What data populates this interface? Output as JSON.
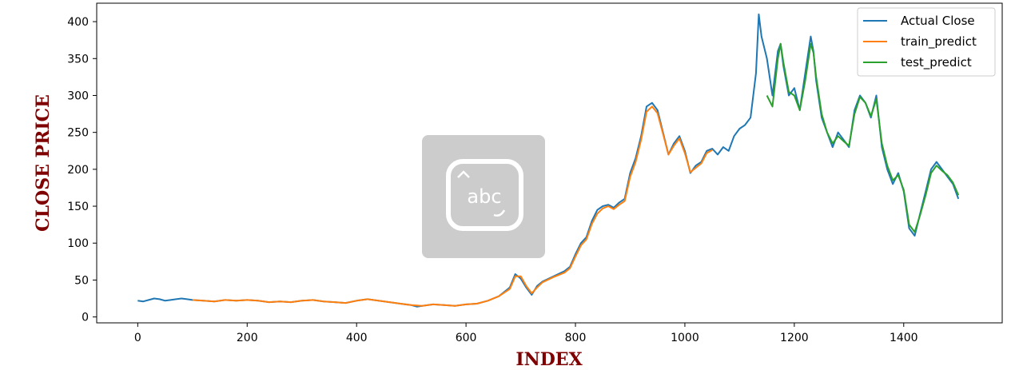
{
  "chart_data": {
    "type": "line",
    "title": "",
    "xlabel": "INDEX",
    "ylabel": "CLOSE PRICE",
    "xlim": [
      -75,
      1580
    ],
    "ylim": [
      -8,
      425
    ],
    "xticks": [
      0,
      200,
      400,
      600,
      800,
      1000,
      1200,
      1400
    ],
    "yticks": [
      0,
      50,
      100,
      150,
      200,
      250,
      300,
      350,
      400
    ],
    "grid": false,
    "legend_position": "top-right",
    "axis_title_color": "#7f0000",
    "series": [
      {
        "name": "Actual Close",
        "color": "#1f77b4",
        "x": [
          0,
          10,
          20,
          30,
          40,
          50,
          60,
          70,
          80,
          90,
          100,
          120,
          140,
          160,
          180,
          200,
          220,
          240,
          260,
          280,
          300,
          320,
          340,
          360,
          380,
          400,
          420,
          440,
          460,
          480,
          500,
          510,
          520,
          540,
          560,
          580,
          600,
          620,
          640,
          660,
          680,
          690,
          700,
          710,
          720,
          730,
          740,
          760,
          780,
          790,
          800,
          810,
          820,
          830,
          840,
          850,
          860,
          870,
          880,
          890,
          900,
          910,
          920,
          930,
          940,
          950,
          960,
          970,
          980,
          990,
          1000,
          1010,
          1020,
          1030,
          1040,
          1050,
          1060,
          1070,
          1080,
          1090,
          1100,
          1110,
          1120,
          1130,
          1135,
          1140,
          1150,
          1160,
          1170,
          1175,
          1180,
          1190,
          1200,
          1210,
          1220,
          1230,
          1235,
          1240,
          1250,
          1260,
          1270,
          1280,
          1290,
          1300,
          1310,
          1320,
          1330,
          1340,
          1350,
          1360,
          1370,
          1380,
          1390,
          1400,
          1410,
          1420,
          1430,
          1440,
          1450,
          1460,
          1470,
          1480,
          1490,
          1500
        ],
        "values": [
          22,
          21,
          23,
          25,
          24,
          22,
          23,
          24,
          25,
          24,
          23,
          22,
          21,
          23,
          22,
          23,
          22,
          20,
          21,
          20,
          22,
          23,
          21,
          20,
          19,
          22,
          24,
          22,
          20,
          18,
          16,
          14,
          15,
          17,
          16,
          15,
          17,
          18,
          22,
          28,
          40,
          58,
          52,
          40,
          30,
          42,
          48,
          55,
          62,
          68,
          85,
          100,
          108,
          130,
          145,
          150,
          152,
          148,
          155,
          160,
          195,
          215,
          245,
          285,
          290,
          280,
          250,
          220,
          235,
          245,
          225,
          195,
          205,
          210,
          225,
          228,
          220,
          230,
          225,
          245,
          255,
          260,
          270,
          330,
          410,
          380,
          350,
          300,
          360,
          370,
          340,
          300,
          310,
          280,
          330,
          380,
          360,
          320,
          270,
          250,
          230,
          250,
          240,
          230,
          280,
          300,
          290,
          270,
          300,
          230,
          200,
          180,
          195,
          170,
          120,
          110,
          140,
          170,
          200,
          210,
          200,
          190,
          180,
          160
        ],
        "data_name": "actual-close-line"
      },
      {
        "name": "train_predict",
        "color": "#ff7f0e",
        "x": [
          100,
          120,
          140,
          160,
          180,
          200,
          220,
          240,
          260,
          280,
          300,
          320,
          340,
          360,
          380,
          400,
          420,
          440,
          460,
          480,
          500,
          520,
          540,
          560,
          580,
          600,
          620,
          640,
          660,
          680,
          690,
          700,
          710,
          720,
          730,
          740,
          760,
          780,
          790,
          800,
          810,
          820,
          830,
          840,
          850,
          860,
          870,
          880,
          890,
          900,
          910,
          920,
          930,
          940,
          950,
          960,
          970,
          980,
          990,
          1000,
          1010,
          1020,
          1030,
          1040,
          1050
        ],
        "values": [
          23,
          22,
          21,
          23,
          22,
          23,
          22,
          20,
          21,
          20,
          22,
          23,
          21,
          20,
          19,
          22,
          24,
          22,
          20,
          18,
          16,
          15,
          17,
          16,
          15,
          17,
          18,
          22,
          28,
          38,
          55,
          55,
          42,
          32,
          40,
          47,
          54,
          60,
          66,
          82,
          97,
          105,
          126,
          140,
          147,
          150,
          146,
          152,
          157,
          190,
          210,
          240,
          278,
          285,
          276,
          248,
          220,
          232,
          242,
          222,
          196,
          202,
          208,
          222,
          226
        ],
        "data_name": "train-predict-line"
      },
      {
        "name": "test_predict",
        "color": "#2ca02c",
        "x": [
          1150,
          1160,
          1170,
          1175,
          1180,
          1190,
          1200,
          1210,
          1220,
          1230,
          1235,
          1240,
          1250,
          1260,
          1270,
          1280,
          1290,
          1300,
          1310,
          1320,
          1330,
          1340,
          1350,
          1360,
          1370,
          1380,
          1390,
          1400,
          1410,
          1420,
          1430,
          1440,
          1450,
          1460,
          1470,
          1480,
          1490,
          1500
        ],
        "values": [
          300,
          285,
          350,
          370,
          345,
          305,
          300,
          280,
          320,
          370,
          358,
          325,
          275,
          250,
          235,
          245,
          238,
          232,
          275,
          298,
          290,
          272,
          295,
          235,
          205,
          185,
          192,
          172,
          125,
          115,
          138,
          165,
          195,
          205,
          198,
          192,
          182,
          165
        ],
        "data_name": "test-predict-line"
      }
    ]
  },
  "watermark_icon": "abc-keyboard-icon",
  "watermark_text": "abc"
}
